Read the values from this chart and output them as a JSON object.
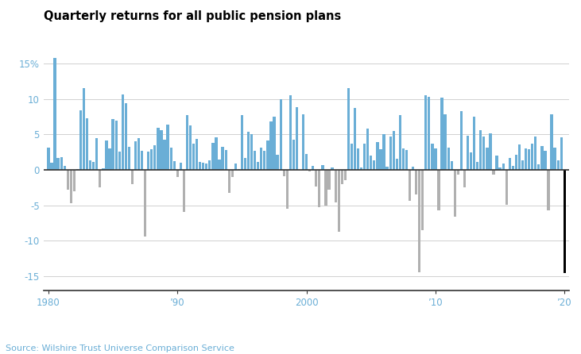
{
  "title": "Quarterly returns for all public pension plans",
  "source": "Source: Wilshire Trust Universe Comparison Service",
  "ylim": [
    -17,
    18
  ],
  "yticks": [
    -15,
    -10,
    -5,
    0,
    5,
    10,
    15
  ],
  "ytick_labels": [
    "-15",
    "-10",
    "-5",
    "0",
    "5",
    "10",
    "15%"
  ],
  "background_color": "#ffffff",
  "bar_color_positive": "#6aaed6",
  "bar_color_negative": "#b0b0b0",
  "bar_color_last": "#000000",
  "tick_color": "#6aaed6",
  "source_color": "#6aaed6",
  "grid_color": "#d0d0d0",
  "spine_color": "#333333",
  "title_color": "#000000",
  "xtick_positions": [
    0,
    40,
    80,
    120,
    160
  ],
  "xtick_labels": [
    "1980",
    "’90",
    "2000",
    "’10",
    "’20"
  ],
  "values": [
    3.2,
    1.0,
    15.8,
    1.7,
    1.8,
    0.6,
    -2.8,
    -4.7,
    -3.0,
    0.1,
    8.4,
    11.5,
    7.3,
    1.3,
    1.1,
    4.5,
    -2.5,
    0.2,
    4.2,
    3.0,
    7.2,
    7.0,
    2.6,
    10.7,
    9.4,
    3.3,
    -2.0,
    4.0,
    4.5,
    2.7,
    -9.4,
    2.6,
    2.9,
    3.5,
    5.9,
    5.6,
    4.3,
    6.4,
    3.2,
    1.2,
    -1.0,
    1.0,
    -5.9,
    7.7,
    6.3,
    3.7,
    4.4,
    1.1,
    1.0,
    0.9,
    1.3,
    3.8,
    4.6,
    1.5,
    3.3,
    2.8,
    -3.2,
    -1.0,
    0.9,
    0.1,
    7.7,
    1.7,
    5.4,
    5.1,
    2.7,
    1.1,
    3.2,
    2.7,
    4.2,
    6.8,
    7.5,
    2.1,
    10.0,
    -0.9,
    -5.5,
    10.6,
    4.3,
    8.9,
    0.0,
    7.9,
    2.3,
    -0.2,
    0.6,
    -2.4,
    -5.3,
    0.7,
    -5.0,
    -2.8,
    0.3,
    -4.6,
    -8.7,
    -2.0,
    -1.5,
    11.6,
    3.7,
    8.8,
    3.0,
    0.3,
    3.7,
    5.8,
    2.0,
    1.4,
    3.9,
    2.9,
    5.0,
    0.5,
    4.7,
    5.5,
    1.6,
    7.7,
    3.0,
    2.8,
    -4.4,
    0.5,
    -3.5,
    -14.4,
    -8.5,
    10.5,
    10.3,
    3.7,
    3.0,
    -5.7,
    10.2,
    7.9,
    3.2,
    1.2,
    -6.6,
    -0.7,
    8.3,
    -2.5,
    4.8,
    2.5,
    7.5,
    1.1,
    5.6,
    4.7,
    3.2,
    5.2,
    -0.7,
    2.0,
    0.3,
    0.9,
    -4.9,
    1.7,
    0.6,
    2.1,
    3.6,
    1.3,
    3.0,
    2.9,
    3.7,
    4.7,
    0.8,
    3.4,
    2.7,
    -5.7,
    7.9,
    3.1,
    1.3,
    4.6,
    -14.6
  ]
}
